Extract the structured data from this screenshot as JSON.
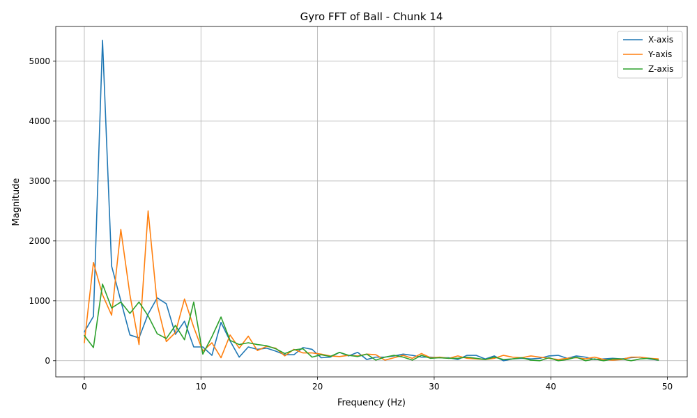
{
  "chart_data": {
    "type": "line",
    "title": "Gyro FFT of Ball - Chunk 14",
    "xlabel": "Frequency (Hz)",
    "ylabel": "Magnitude",
    "xlim": [
      -2.45,
      51.7
    ],
    "ylim": [
      -270,
      5580
    ],
    "xticks": [
      0,
      10,
      20,
      30,
      40,
      50
    ],
    "yticks": [
      0,
      1000,
      2000,
      3000,
      4000,
      5000
    ],
    "grid": true,
    "legend_position": "top-right",
    "x": [
      0,
      0.78,
      1.56,
      2.34,
      3.13,
      3.91,
      4.69,
      5.47,
      6.25,
      7.03,
      7.81,
      8.59,
      9.38,
      10.16,
      10.94,
      11.72,
      12.5,
      13.28,
      14.06,
      14.84,
      15.63,
      16.41,
      17.19,
      17.97,
      18.75,
      19.53,
      20.31,
      21.09,
      21.88,
      22.66,
      23.44,
      24.22,
      25.0,
      25.78,
      26.56,
      27.34,
      28.13,
      28.91,
      29.69,
      30.47,
      31.25,
      32.03,
      32.81,
      33.59,
      34.38,
      35.16,
      35.94,
      36.72,
      37.5,
      38.28,
      39.06,
      39.84,
      40.63,
      41.41,
      42.19,
      42.97,
      43.75,
      44.53,
      45.31,
      46.09,
      46.88,
      47.66,
      48.44,
      49.22
    ],
    "series": [
      {
        "name": "X-axis",
        "color": "#1f77b4",
        "values": [
          480,
          740,
          5350,
          1580,
          1000,
          430,
          380,
          780,
          1050,
          950,
          440,
          660,
          230,
          230,
          90,
          640,
          330,
          60,
          230,
          190,
          210,
          160,
          100,
          100,
          220,
          190,
          50,
          60,
          140,
          80,
          140,
          20,
          60,
          60,
          80,
          110,
          90,
          60,
          60,
          50,
          50,
          20,
          90,
          90,
          30,
          80,
          0,
          30,
          40,
          30,
          40,
          80,
          90,
          40,
          80,
          60,
          20,
          30,
          40,
          30,
          50,
          60,
          30,
          10
        ]
      },
      {
        "name": "Y-axis",
        "color": "#ff7f0e",
        "values": [
          300,
          1640,
          1100,
          760,
          2190,
          1100,
          270,
          2500,
          940,
          320,
          470,
          1030,
          560,
          160,
          300,
          50,
          430,
          210,
          410,
          170,
          240,
          210,
          80,
          190,
          130,
          130,
          110,
          80,
          70,
          90,
          80,
          110,
          100,
          10,
          50,
          90,
          40,
          120,
          50,
          60,
          40,
          80,
          40,
          30,
          20,
          40,
          90,
          60,
          50,
          80,
          60,
          40,
          20,
          40,
          50,
          30,
          60,
          20,
          10,
          20,
          60,
          60,
          40,
          30
        ]
      },
      {
        "name": "Z-axis",
        "color": "#2ca02c",
        "values": [
          420,
          220,
          1280,
          880,
          980,
          790,
          980,
          750,
          450,
          370,
          590,
          350,
          980,
          110,
          400,
          730,
          340,
          270,
          300,
          270,
          250,
          200,
          120,
          180,
          200,
          60,
          100,
          70,
          140,
          90,
          70,
          110,
          10,
          60,
          90,
          60,
          10,
          90,
          40,
          50,
          40,
          40,
          60,
          40,
          20,
          60,
          20,
          30,
          50,
          10,
          0,
          50,
          0,
          20,
          60,
          0,
          30,
          0,
          30,
          30,
          0,
          30,
          40,
          10
        ]
      }
    ]
  }
}
